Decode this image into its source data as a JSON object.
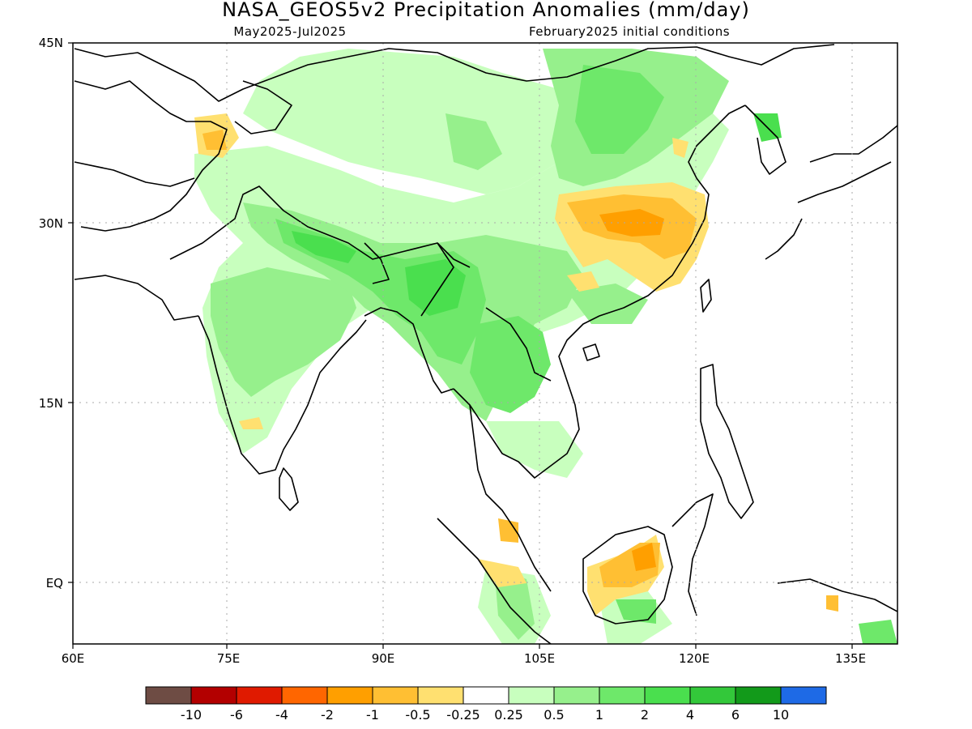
{
  "header": {
    "title": "NASA_GEOS5v2 Precipitation Anomalies (mm/day)",
    "period": "May2025-Jul2025",
    "init": "February2025 initial conditions"
  },
  "axes": {
    "y_ticks": [
      "45N",
      "30N",
      "15N",
      "EQ"
    ],
    "x_ticks": [
      "60E",
      "75E",
      "90E",
      "105E",
      "120E",
      "135E"
    ]
  },
  "colorbar": {
    "colors": [
      "#6e4c44",
      "#b30000",
      "#e01a00",
      "#ff6600",
      "#ff9f00",
      "#ffbf33",
      "#ffe070",
      "#ffffff",
      "#c8ffbe",
      "#96f08c",
      "#6ee86a",
      "#4adf4e",
      "#33c83a",
      "#129a1a",
      "#1e6ae6"
    ],
    "labels": [
      "-10",
      "-6",
      "-4",
      "-2",
      "-1",
      "-0.5",
      "-0.25",
      "0.25",
      "0.5",
      "1",
      "2",
      "4",
      "6",
      "10"
    ]
  }
}
